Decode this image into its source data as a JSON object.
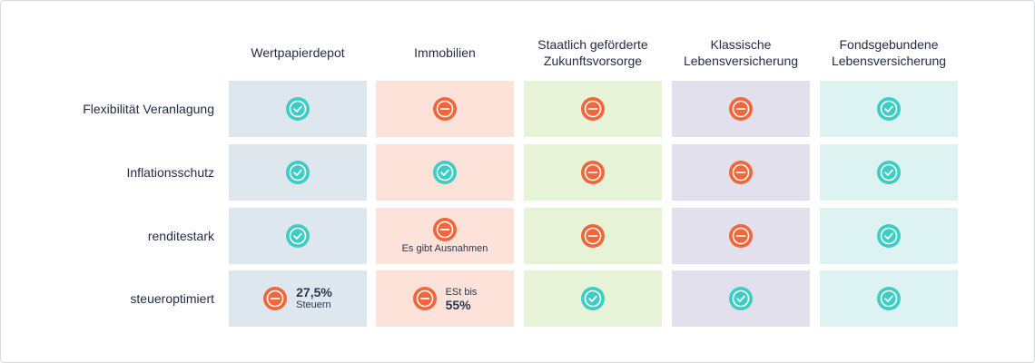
{
  "columns": [
    {
      "label": "Wertpapierdepot",
      "color": "#dfe7ee"
    },
    {
      "label": "Immobilien",
      "color": "#fde2da"
    },
    {
      "label": "Staatlich geförderte Zukunftsvorsorge",
      "color": "#e6f3d6"
    },
    {
      "label": "Klassische Lebensversicherung",
      "color": "#e3e0ee"
    },
    {
      "label": "Fondsgebundene Lebensversicherung",
      "color": "#dcf3f1"
    }
  ],
  "rows": [
    {
      "label": "Flexibilität Veranlagung",
      "values": [
        "check",
        "minus",
        "minus",
        "minus",
        "check"
      ]
    },
    {
      "label": "Inflationsschutz",
      "values": [
        "check",
        "check",
        "minus",
        "minus",
        "check"
      ]
    },
    {
      "label": "renditestark",
      "values": [
        "check",
        "minus",
        "minus",
        "minus",
        "check"
      ]
    },
    {
      "label": "steueroptimiert",
      "values": [
        "minus",
        "minus",
        "check",
        "check",
        "check"
      ]
    }
  ],
  "annotations": {
    "immobilien_renditestark_note": "Es gibt Ausnahmen",
    "depot_steuer_big": "27,5%",
    "depot_steuer_small": "Steuern",
    "immobilien_steuer_small": "ESt bis",
    "immobilien_steuer_big": "55%"
  },
  "icons": {
    "check": "check-circle-icon",
    "minus": "minus-circle-icon",
    "check_color": "#3ecdc6",
    "minus_color": "#f2663a"
  }
}
